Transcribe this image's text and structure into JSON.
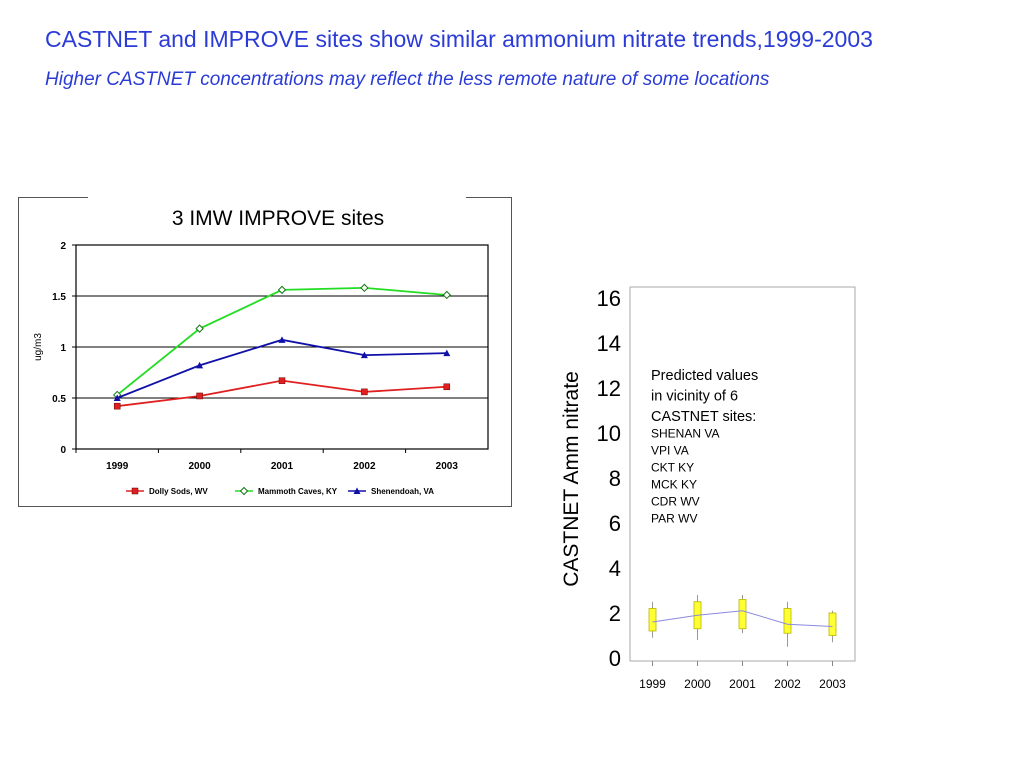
{
  "slide": {
    "title": "CASTNET and IMPROVE sites show similar ammonium nitrate trends,1999-2003",
    "subtitle": "Higher CASTNET concentrations may reflect the less remote nature of some locations"
  },
  "chart_data": [
    {
      "type": "line",
      "title": "3 IMW IMPROVE sites",
      "xlabel": "",
      "ylabel": "ug/m3",
      "categories": [
        "1999",
        "2000",
        "2001",
        "2002",
        "2003"
      ],
      "ylim": [
        0,
        2
      ],
      "yticks": [
        "0",
        "0.5",
        "1",
        "1.5",
        "2"
      ],
      "grid": true,
      "legend_position": "bottom",
      "series": [
        {
          "name": "Dolly Sods, WV",
          "color": "#e02020",
          "marker": "square",
          "values": [
            0.42,
            0.52,
            0.67,
            0.56,
            0.61
          ]
        },
        {
          "name": "Mammoth Caves, KY",
          "color": "#22dd22",
          "marker": "diamond",
          "values": [
            0.53,
            1.18,
            1.56,
            1.58,
            1.51
          ]
        },
        {
          "name": "Shenendoah, VA",
          "color": "#1010a8",
          "marker": "triangle",
          "values": [
            0.5,
            0.82,
            1.07,
            0.92,
            0.94
          ]
        }
      ]
    },
    {
      "type": "box",
      "title": "",
      "xlabel": "",
      "ylabel": "CASTNET Amm nitrate",
      "categories": [
        "1999",
        "2000",
        "2001",
        "2002",
        "2003"
      ],
      "ylim": [
        0,
        16
      ],
      "yticks": [
        "0",
        "2",
        "4",
        "6",
        "8",
        "10",
        "12",
        "14",
        "16"
      ],
      "grid": false,
      "box_color": "#ffff33",
      "trend_color": "#8a8ae0",
      "boxes": [
        {
          "min": 0.9,
          "q1": 1.2,
          "median": 1.6,
          "q3": 2.2,
          "max": 2.5
        },
        {
          "min": 0.8,
          "q1": 1.3,
          "median": 1.9,
          "q3": 2.5,
          "max": 2.8
        },
        {
          "min": 1.1,
          "q1": 1.3,
          "median": 2.1,
          "q3": 2.6,
          "max": 2.8
        },
        {
          "min": 0.5,
          "q1": 1.1,
          "median": 1.5,
          "q3": 2.2,
          "max": 2.5
        },
        {
          "min": 0.7,
          "q1": 1.0,
          "median": 1.4,
          "q3": 2.0,
          "max": 2.1
        }
      ],
      "annotation": {
        "lines": [
          "Predicted values",
          "in vicinity of 6",
          "CASTNET sites:"
        ],
        "sites": [
          "SHENAN VA",
          "VPI VA",
          "CKT KY",
          "MCK KY",
          "CDR WV",
          "PAR WV"
        ]
      }
    }
  ]
}
